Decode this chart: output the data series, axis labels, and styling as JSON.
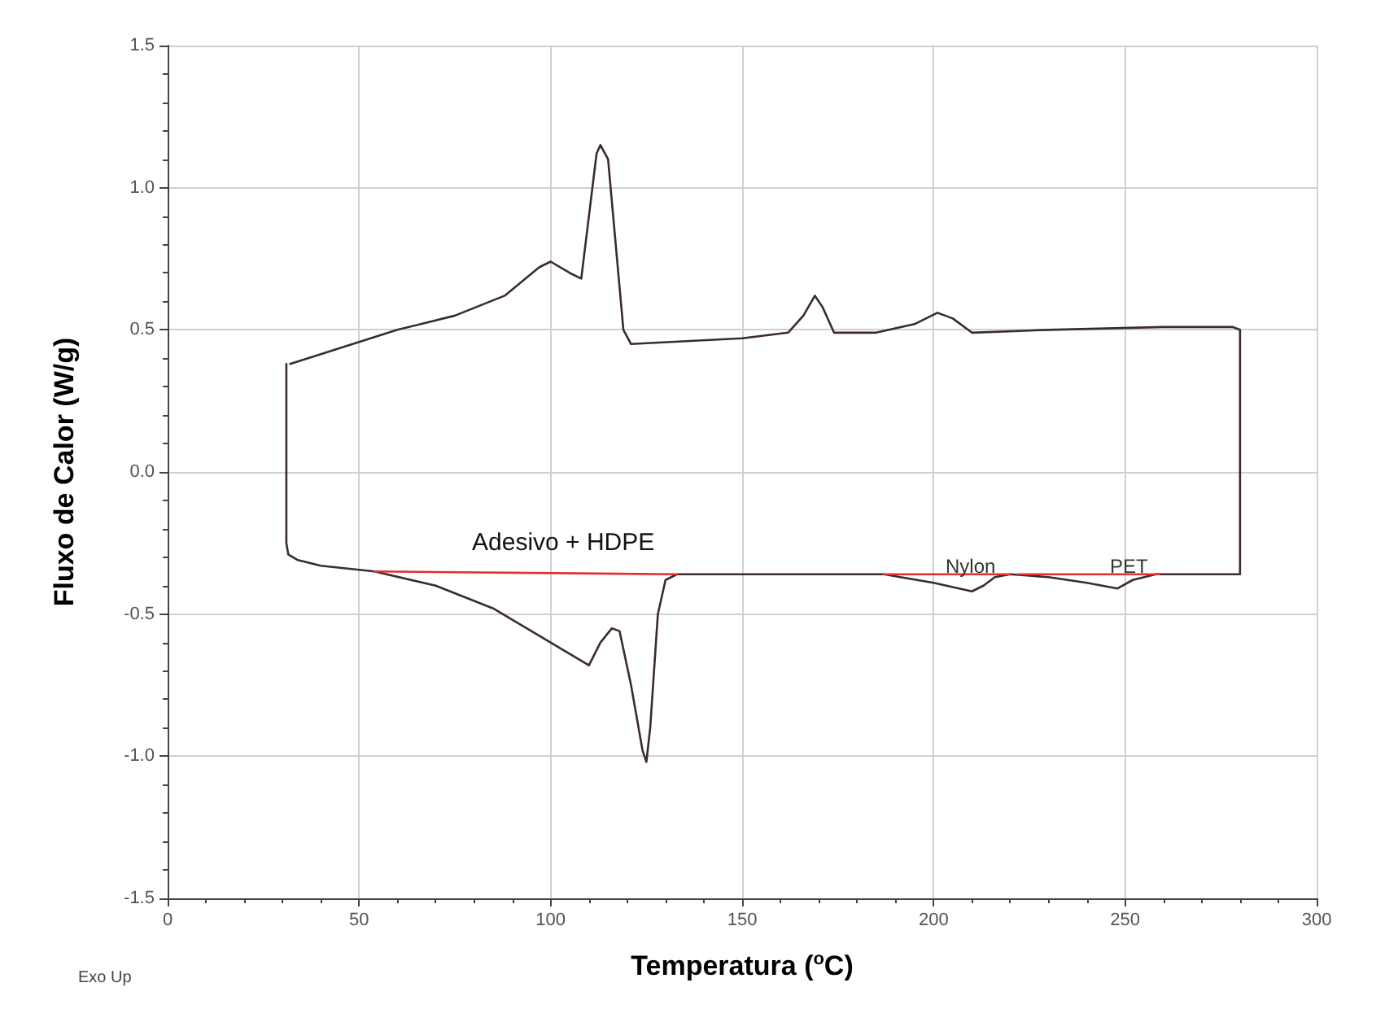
{
  "chart_data": {
    "type": "line",
    "xlabel": "Temperatura ($^{o}$C)",
    "ylabel": "Fluxo de Calor (W/g)",
    "xlim": [
      0,
      300
    ],
    "xticks": [
      0,
      50,
      100,
      150,
      200,
      250,
      300
    ],
    "ylim": [
      -1.5,
      1.5
    ],
    "yticks": [
      -1.5,
      {
        "value": -1,
        "label": "-1.0"
      },
      -0.5,
      {
        "value": 0,
        "label": "0.0"
      },
      0.5,
      {
        "value": 1,
        "label": "1.0"
      },
      1.5
    ],
    "grid": true,
    "marker": "none",
    "line_style": "solid",
    "series": [
      {
        "color": "#3b2b2b",
        "x": [
          31,
          31,
          31.5,
          34,
          40,
          54,
          70,
          85,
          100,
          110,
          113,
          116,
          118,
          121,
          124,
          125,
          126,
          128,
          130,
          133,
          150,
          187,
          200,
          210,
          213,
          216,
          220,
          230,
          240,
          248,
          252,
          258,
          280,
          280,
          278,
          260,
          230,
          210,
          205,
          201,
          195,
          185,
          174,
          171,
          169,
          166,
          162,
          150,
          121,
          119,
          117,
          115,
          113,
          112,
          110,
          108,
          105,
          100,
          97,
          88,
          75,
          60,
          32
        ],
        "values": [
          0.38,
          -0.25,
          -0.29,
          -0.31,
          -0.33,
          -0.35,
          -0.4,
          -0.48,
          -0.6,
          -0.68,
          -0.6,
          -0.55,
          -0.56,
          -0.75,
          -0.98,
          -1.02,
          -0.9,
          -0.5,
          -0.38,
          -0.36,
          -0.36,
          -0.36,
          -0.39,
          -0.42,
          -0.4,
          -0.37,
          -0.36,
          -0.37,
          -0.39,
          -0.41,
          -0.38,
          -0.36,
          -0.36,
          0.5,
          0.51,
          0.51,
          0.5,
          0.49,
          0.54,
          0.56,
          0.52,
          0.49,
          0.49,
          0.58,
          0.62,
          0.55,
          0.49,
          0.47,
          0.45,
          0.5,
          0.8,
          1.1,
          1.15,
          1.12,
          0.9,
          0.68,
          0.7,
          0.74,
          0.72,
          0.62,
          0.55,
          0.5,
          0.38
        ]
      },
      {
        "color": "#e03030",
        "x": [
          54,
          133
        ],
        "values": [
          -0.35,
          -0.36
        ]
      },
      {
        "color": "#e03030",
        "x": [
          187,
          220
        ],
        "values": [
          -0.36,
          -0.36
        ]
      },
      {
        "color": "#e03030",
        "x": [
          222,
          259
        ],
        "values": [
          -0.36,
          -0.36
        ]
      }
    ],
    "annotations": [
      "Adesivo + HDPE",
      "Nylon",
      "PET",
      "Exo Up"
    ]
  }
}
